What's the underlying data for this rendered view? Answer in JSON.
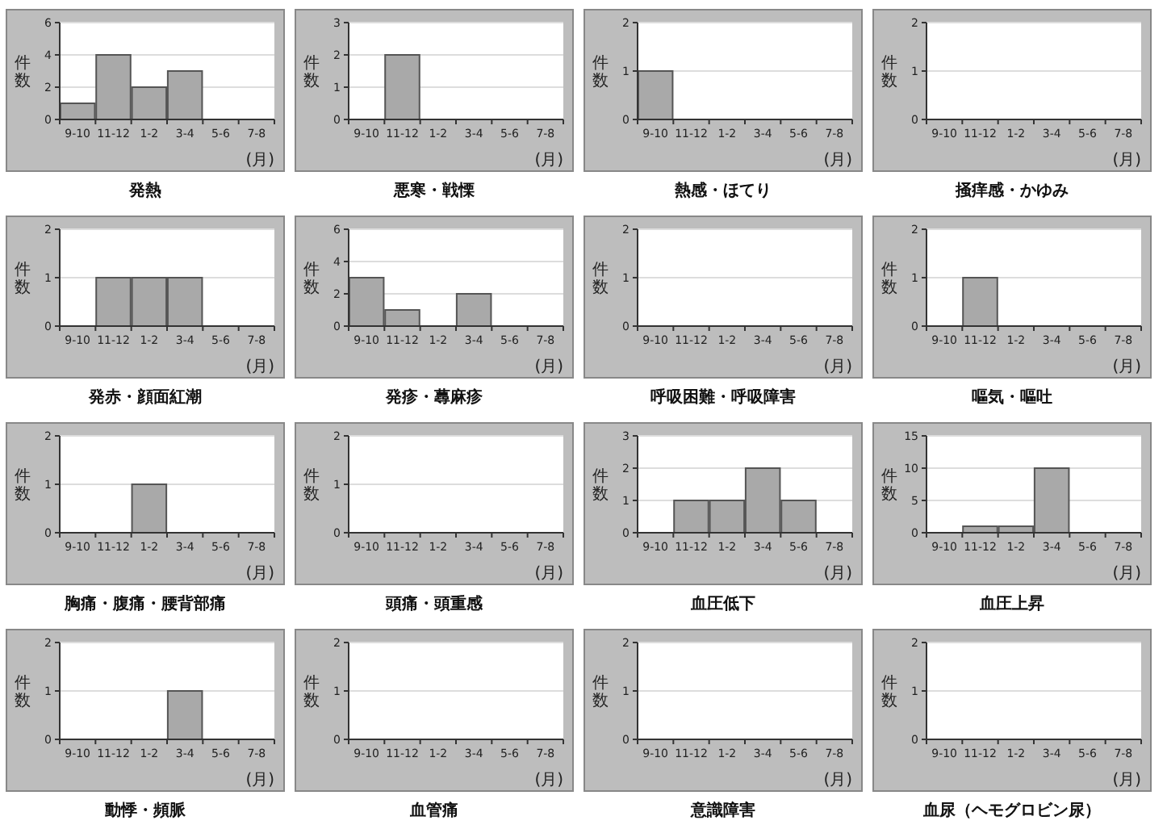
{
  "chart_data": [
    {
      "type": "bar",
      "title": "発熱",
      "xlabel": "(月)",
      "ylabel": "件数",
      "categories": [
        "9-10",
        "11-12",
        "1-2",
        "3-4",
        "5-6",
        "7-8"
      ],
      "values": [
        1,
        4,
        2,
        3,
        0,
        0
      ],
      "color": "#a9a9a9",
      "ylim": [
        0,
        6
      ],
      "yticks": [
        0,
        2,
        4,
        6
      ],
      "grid": "y"
    },
    {
      "type": "bar",
      "title": "悪寒・戦慄",
      "xlabel": "(月)",
      "ylabel": "件数",
      "categories": [
        "9-10",
        "11-12",
        "1-2",
        "3-4",
        "5-6",
        "7-8"
      ],
      "values": [
        0,
        2,
        0,
        0,
        0,
        0
      ],
      "color": "#a9a9a9",
      "ylim": [
        0,
        3
      ],
      "yticks": [
        0,
        1,
        2,
        3
      ],
      "grid": "y"
    },
    {
      "type": "bar",
      "title": "熱感・ほてり",
      "xlabel": "(月)",
      "ylabel": "件数",
      "categories": [
        "9-10",
        "11-12",
        "1-2",
        "3-4",
        "5-6",
        "7-8"
      ],
      "values": [
        1,
        0,
        0,
        0,
        0,
        0
      ],
      "color": "#a9a9a9",
      "ylim": [
        0,
        2
      ],
      "yticks": [
        0,
        1,
        2
      ],
      "grid": "y"
    },
    {
      "type": "bar",
      "title": "掻痒感・かゆみ",
      "xlabel": "(月)",
      "ylabel": "件数",
      "categories": [
        "9-10",
        "11-12",
        "1-2",
        "3-4",
        "5-6",
        "7-8"
      ],
      "values": [
        0,
        0,
        0,
        0,
        0,
        0
      ],
      "color": "#a9a9a9",
      "ylim": [
        0,
        2
      ],
      "yticks": [
        0,
        1,
        2
      ],
      "grid": "y"
    },
    {
      "type": "bar",
      "title": "発赤・顔面紅潮",
      "xlabel": "(月)",
      "ylabel": "件数",
      "categories": [
        "9-10",
        "11-12",
        "1-2",
        "3-4",
        "5-6",
        "7-8"
      ],
      "values": [
        0,
        1,
        1,
        1,
        0,
        0
      ],
      "color": "#a9a9a9",
      "ylim": [
        0,
        2
      ],
      "yticks": [
        0,
        1,
        2
      ],
      "grid": "y"
    },
    {
      "type": "bar",
      "title": "発疹・蕁麻疹",
      "xlabel": "(月)",
      "ylabel": "件数",
      "categories": [
        "9-10",
        "11-12",
        "1-2",
        "3-4",
        "5-6",
        "7-8"
      ],
      "values": [
        3,
        1,
        0,
        2,
        0,
        0
      ],
      "color": "#a9a9a9",
      "ylim": [
        0,
        6
      ],
      "yticks": [
        0,
        2,
        4,
        6
      ],
      "grid": "y"
    },
    {
      "type": "bar",
      "title": "呼吸困難・呼吸障害",
      "xlabel": "(月)",
      "ylabel": "件数",
      "categories": [
        "9-10",
        "11-12",
        "1-2",
        "3-4",
        "5-6",
        "7-8"
      ],
      "values": [
        0,
        0,
        0,
        0,
        0,
        0
      ],
      "color": "#a9a9a9",
      "ylim": [
        0,
        2
      ],
      "yticks": [
        0,
        1,
        2
      ],
      "grid": "y"
    },
    {
      "type": "bar",
      "title": "嘔気・嘔吐",
      "xlabel": "(月)",
      "ylabel": "件数",
      "categories": [
        "9-10",
        "11-12",
        "1-2",
        "3-4",
        "5-6",
        "7-8"
      ],
      "values": [
        0,
        1,
        0,
        0,
        0,
        0
      ],
      "color": "#a9a9a9",
      "ylim": [
        0,
        2
      ],
      "yticks": [
        0,
        1,
        2
      ],
      "grid": "y"
    },
    {
      "type": "bar",
      "title": "胸痛・腹痛・腰背部痛",
      "xlabel": "(月)",
      "ylabel": "件数",
      "categories": [
        "9-10",
        "11-12",
        "1-2",
        "3-4",
        "5-6",
        "7-8"
      ],
      "values": [
        0,
        0,
        1,
        0,
        0,
        0
      ],
      "color": "#a9a9a9",
      "ylim": [
        0,
        2
      ],
      "yticks": [
        0,
        1,
        2
      ],
      "grid": "y"
    },
    {
      "type": "bar",
      "title": "頭痛・頭重感",
      "xlabel": "(月)",
      "ylabel": "件数",
      "categories": [
        "9-10",
        "11-12",
        "1-2",
        "3-4",
        "5-6",
        "7-8"
      ],
      "values": [
        0,
        0,
        0,
        0,
        0,
        0
      ],
      "color": "#a9a9a9",
      "ylim": [
        0,
        2
      ],
      "yticks": [
        0,
        1,
        2
      ],
      "grid": "y"
    },
    {
      "type": "bar",
      "title": "血圧低下",
      "xlabel": "(月)",
      "ylabel": "件数",
      "categories": [
        "9-10",
        "11-12",
        "1-2",
        "3-4",
        "5-6",
        "7-8"
      ],
      "values": [
        0,
        1,
        1,
        2,
        1,
        0
      ],
      "color": "#a9a9a9",
      "ylim": [
        0,
        3
      ],
      "yticks": [
        0,
        1,
        2,
        3
      ],
      "grid": "y"
    },
    {
      "type": "bar",
      "title": "血圧上昇",
      "xlabel": "(月)",
      "ylabel": "件数",
      "categories": [
        "9-10",
        "11-12",
        "1-2",
        "3-4",
        "5-6",
        "7-8"
      ],
      "values": [
        0,
        1,
        1,
        10,
        0,
        0
      ],
      "color": "#a9a9a9",
      "ylim": [
        0,
        15
      ],
      "yticks": [
        0,
        5,
        10,
        15
      ],
      "grid": "y"
    },
    {
      "type": "bar",
      "title": "動悸・頻脈",
      "xlabel": "(月)",
      "ylabel": "件数",
      "categories": [
        "9-10",
        "11-12",
        "1-2",
        "3-4",
        "5-6",
        "7-8"
      ],
      "values": [
        0,
        0,
        0,
        1,
        0,
        0
      ],
      "color": "#a9a9a9",
      "ylim": [
        0,
        2
      ],
      "yticks": [
        0,
        1,
        2
      ],
      "grid": "y"
    },
    {
      "type": "bar",
      "title": "血管痛",
      "xlabel": "(月)",
      "ylabel": "件数",
      "categories": [
        "9-10",
        "11-12",
        "1-2",
        "3-4",
        "5-6",
        "7-8"
      ],
      "values": [
        0,
        0,
        0,
        0,
        0,
        0
      ],
      "color": "#a9a9a9",
      "ylim": [
        0,
        2
      ],
      "yticks": [
        0,
        1,
        2
      ],
      "grid": "y"
    },
    {
      "type": "bar",
      "title": "意識障害",
      "xlabel": "(月)",
      "ylabel": "件数",
      "categories": [
        "9-10",
        "11-12",
        "1-2",
        "3-4",
        "5-6",
        "7-8"
      ],
      "values": [
        0,
        0,
        0,
        0,
        0,
        0
      ],
      "color": "#a9a9a9",
      "ylim": [
        0,
        2
      ],
      "yticks": [
        0,
        1,
        2
      ],
      "grid": "y"
    },
    {
      "type": "bar",
      "title": "血尿（ヘモグロビン尿）",
      "xlabel": "(月)",
      "ylabel": "件数",
      "categories": [
        "9-10",
        "11-12",
        "1-2",
        "3-4",
        "5-6",
        "7-8"
      ],
      "values": [
        0,
        0,
        0,
        0,
        0,
        0
      ],
      "color": "#a9a9a9",
      "ylim": [
        0,
        2
      ],
      "yticks": [
        0,
        1,
        2
      ],
      "grid": "y"
    }
  ]
}
